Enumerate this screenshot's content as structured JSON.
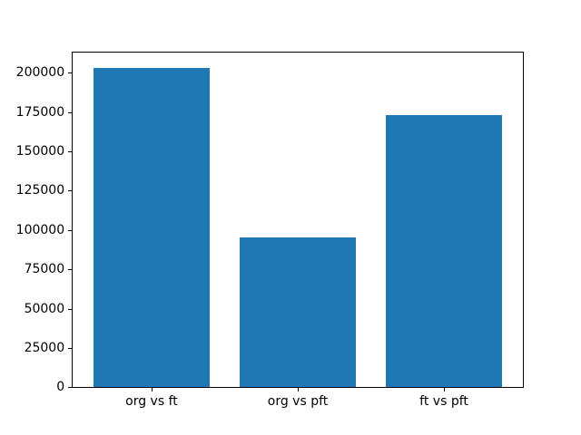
{
  "window": {
    "background": "#ffffff"
  },
  "chart_data": {
    "type": "bar",
    "categories": [
      "org vs ft",
      "org vs pft",
      "ft vs pft"
    ],
    "values": [
      203000,
      95000,
      173000
    ],
    "title": "",
    "xlabel": "",
    "ylabel": "",
    "ylim": [
      0,
      213150
    ],
    "yticks": [
      0,
      25000,
      50000,
      75000,
      100000,
      125000,
      150000,
      175000,
      200000
    ],
    "bar_color": "#1f77b4",
    "spine_color": "#000000",
    "tick_label_color": "#000000",
    "bar_width_fraction": 0.8,
    "grid": false,
    "legend_position": "none"
  }
}
